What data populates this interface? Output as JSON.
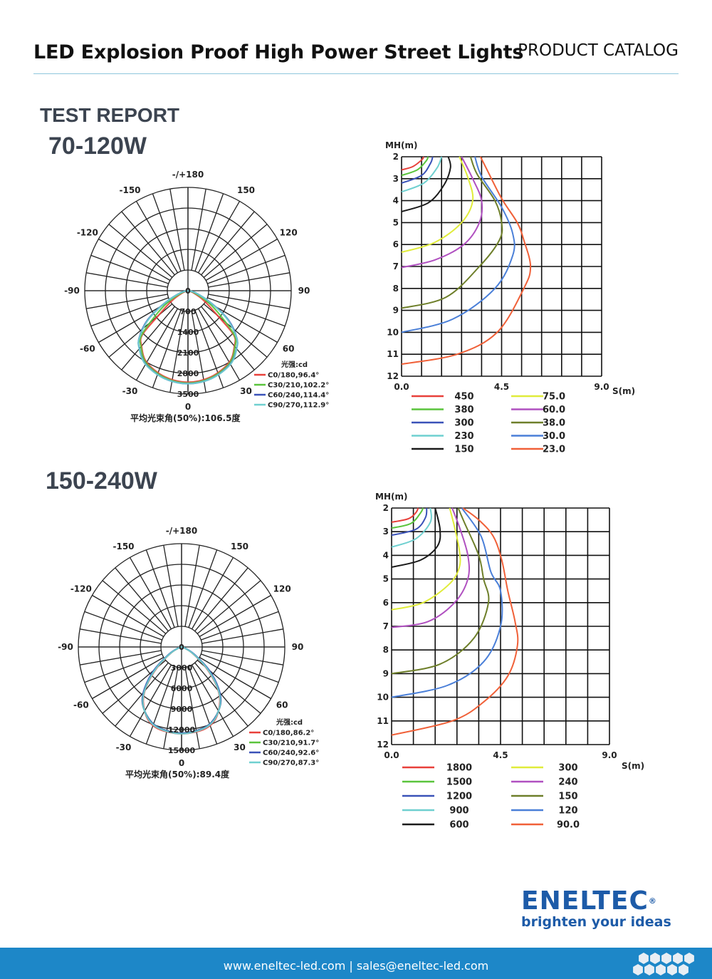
{
  "header": {
    "title": "LED Explosion Proof High Power Street Lights",
    "catalog": "PRODUCT CATALOG",
    "rule_color": "#8ec6dc"
  },
  "section": {
    "heading": "TEST REPORT"
  },
  "models": [
    "70-120W",
    "150-240W"
  ],
  "logo": {
    "name": "ENELTEC",
    "registered": "®",
    "tagline": "brighten your ideas",
    "color": "#1d5ba8"
  },
  "footer": {
    "contact": "www.eneltec-led.com | sales@eneltec-led.com",
    "color": "#1d87c8",
    "hexagon_icon": "hexagon-pattern"
  },
  "chart_data": [
    {
      "type": "polar",
      "model": "70-120W",
      "angle_labels": [
        "-/+180",
        "-150",
        "150",
        "-120",
        "120",
        "-90",
        "90",
        "-60",
        "60",
        "-30",
        "30",
        "0"
      ],
      "ring_labels": [
        "0",
        "700",
        "1400",
        "2100",
        "2800",
        "3500"
      ],
      "rmax": 3500,
      "unit_label": "光强:cd",
      "caption": "平均光束角(50%):106.5度",
      "series": [
        {
          "name": "C0/180,96.4°",
          "color": "#e8403a",
          "points": [
            [
              0,
              3100
            ],
            [
              15,
              3020
            ],
            [
              30,
              2800
            ],
            [
              40,
              2450
            ],
            [
              46,
              2150
            ],
            [
              50,
              1300
            ],
            [
              58,
              650
            ],
            [
              70,
              180
            ],
            [
              90,
              0
            ]
          ]
        },
        {
          "name": "C30/210,102.2°",
          "color": "#5ac43c",
          "points": [
            [
              0,
              3130
            ],
            [
              15,
              3050
            ],
            [
              30,
              2830
            ],
            [
              40,
              2480
            ],
            [
              46,
              2200
            ],
            [
              52,
              1450
            ],
            [
              60,
              800
            ],
            [
              72,
              220
            ],
            [
              90,
              0
            ]
          ]
        },
        {
          "name": "C60/240,114.4°",
          "color": "#3a52b8",
          "points": [
            [
              0,
              3150
            ],
            [
              15,
              3080
            ],
            [
              30,
              2870
            ],
            [
              40,
              2560
            ],
            [
              46,
              2300
            ],
            [
              54,
              1700
            ],
            [
              62,
              900
            ],
            [
              74,
              280
            ],
            [
              90,
              0
            ]
          ]
        },
        {
          "name": "C90/270,112.9°",
          "color": "#6fd0d0",
          "points": [
            [
              0,
              3150
            ],
            [
              15,
              3080
            ],
            [
              30,
              2880
            ],
            [
              40,
              2570
            ],
            [
              46,
              2290
            ],
            [
              54,
              1650
            ],
            [
              62,
              880
            ],
            [
              74,
              270
            ],
            [
              90,
              0
            ]
          ]
        }
      ]
    },
    {
      "type": "line",
      "model": "70-120W",
      "ylabel": "MH(m)",
      "xlabel": "S(m)",
      "xlim": [
        0,
        9
      ],
      "ylim": [
        2,
        12
      ],
      "y_inverted": true,
      "grid": true,
      "x_ticks": [
        "0.0",
        "4.5",
        "9.0"
      ],
      "y_ticks": [
        "2",
        "3",
        "4",
        "5",
        "6",
        "7",
        "8",
        "9",
        "10",
        "11",
        "12"
      ],
      "series": [
        {
          "name": "450",
          "color": "#e8403a",
          "points": [
            [
              0,
              2.6
            ],
            [
              0.5,
              2.45
            ],
            [
              0.9,
              2.15
            ],
            [
              1.0,
              2
            ]
          ]
        },
        {
          "name": "380",
          "color": "#5ac43c",
          "points": [
            [
              0,
              2.85
            ],
            [
              0.7,
              2.6
            ],
            [
              1.1,
              2.2
            ],
            [
              1.2,
              2
            ]
          ]
        },
        {
          "name": "300",
          "color": "#3a52b8",
          "points": [
            [
              0,
              3.2
            ],
            [
              0.9,
              2.85
            ],
            [
              1.3,
              2.3
            ],
            [
              1.4,
              2
            ]
          ]
        },
        {
          "name": "230",
          "color": "#6fd0d0",
          "points": [
            [
              0,
              3.6
            ],
            [
              1.0,
              3.2
            ],
            [
              1.6,
              2.5
            ],
            [
              1.8,
              2
            ]
          ]
        },
        {
          "name": "150",
          "color": "#1a1a1a",
          "points": [
            [
              0,
              4.5
            ],
            [
              1.2,
              4.1
            ],
            [
              1.9,
              3.3
            ],
            [
              2.2,
              2.5
            ],
            [
              2.1,
              2
            ]
          ]
        },
        {
          "name": "75.0",
          "color": "#e0ec3a",
          "points": [
            [
              0,
              6.35
            ],
            [
              1.5,
              5.9
            ],
            [
              2.7,
              5.0
            ],
            [
              3.2,
              4.0
            ],
            [
              3.0,
              3.0
            ],
            [
              2.6,
              2
            ]
          ]
        },
        {
          "name": "60.0",
          "color": "#b050c0",
          "points": [
            [
              0,
              7.05
            ],
            [
              1.5,
              6.7
            ],
            [
              2.8,
              6.0
            ],
            [
              3.5,
              5.0
            ],
            [
              3.6,
              4.0
            ],
            [
              3.2,
              3.0
            ],
            [
              2.7,
              2
            ]
          ]
        },
        {
          "name": "38.0",
          "color": "#6e7f2a",
          "points": [
            [
              0,
              8.9
            ],
            [
              2,
              8.4
            ],
            [
              3.5,
              7.0
            ],
            [
              4.4,
              5.8
            ],
            [
              4.5,
              5.0
            ],
            [
              4.2,
              4.0
            ],
            [
              3.4,
              2.8
            ],
            [
              3.1,
              2
            ]
          ]
        },
        {
          "name": "30.0",
          "color": "#4a7fd8",
          "points": [
            [
              0,
              10
            ],
            [
              2.3,
              9.4
            ],
            [
              4.2,
              8.0
            ],
            [
              5.0,
              6.5
            ],
            [
              5.0,
              5.5
            ],
            [
              4.5,
              4.3
            ],
            [
              3.6,
              2.9
            ],
            [
              3.3,
              2
            ]
          ]
        },
        {
          "name": "23.0",
          "color": "#f06038",
          "points": [
            [
              0,
              11.45
            ],
            [
              2.5,
              11
            ],
            [
              4.3,
              10
            ],
            [
              5.5,
              8.0
            ],
            [
              5.8,
              7.0
            ],
            [
              5.5,
              5.8
            ],
            [
              5.2,
              5
            ],
            [
              4.5,
              3.9
            ],
            [
              3.8,
              2.5
            ],
            [
              3.55,
              2
            ]
          ]
        }
      ]
    },
    {
      "type": "polar",
      "model": "150-240W",
      "angle_labels": [
        "-/+180",
        "-150",
        "150",
        "-120",
        "120",
        "-90",
        "90",
        "-60",
        "60",
        "-30",
        "30",
        "0"
      ],
      "ring_labels": [
        "0",
        "3000",
        "6000",
        "9000",
        "12000",
        "15000"
      ],
      "rmax": 15000,
      "unit_label": "光强:cd",
      "caption": "平均光束角(50%):89.4度",
      "series": [
        {
          "name": "C0/180,86.2°",
          "color": "#e8403a",
          "points": [
            [
              0,
              12600
            ],
            [
              15,
              12400
            ],
            [
              25,
              11600
            ],
            [
              35,
              9700
            ],
            [
              42,
              7600
            ],
            [
              50,
              4600
            ],
            [
              60,
              1800
            ],
            [
              75,
              300
            ],
            [
              90,
              0
            ]
          ]
        },
        {
          "name": "C30/210,91.7°",
          "color": "#5ac43c",
          "points": [
            [
              0,
              12500
            ],
            [
              15,
              12200
            ],
            [
              25,
              11400
            ],
            [
              35,
              9900
            ],
            [
              42,
              7900
            ],
            [
              50,
              5000
            ],
            [
              60,
              2000
            ],
            [
              75,
              350
            ],
            [
              90,
              0
            ]
          ]
        },
        {
          "name": "C60/240,92.6°",
          "color": "#3a52b8",
          "points": [
            [
              0,
              12500
            ],
            [
              15,
              12200
            ],
            [
              25,
              11400
            ],
            [
              35,
              9900
            ],
            [
              42,
              8000
            ],
            [
              50,
              5200
            ],
            [
              60,
              2100
            ],
            [
              75,
              380
            ],
            [
              90,
              0
            ]
          ]
        },
        {
          "name": "C90/270,87.3°",
          "color": "#6fd0d0",
          "points": [
            [
              0,
              12600
            ],
            [
              15,
              12300
            ],
            [
              25,
              11500
            ],
            [
              35,
              9800
            ],
            [
              42,
              7700
            ],
            [
              50,
              4800
            ],
            [
              60,
              1900
            ],
            [
              75,
              320
            ],
            [
              90,
              0
            ]
          ]
        }
      ]
    },
    {
      "type": "line",
      "model": "150-240W",
      "ylabel": "MH(m)",
      "xlabel": "S(m)",
      "xlim": [
        0,
        9
      ],
      "ylim": [
        2,
        12
      ],
      "y_inverted": true,
      "grid": true,
      "x_ticks": [
        "0.0",
        "4.5",
        "9.0"
      ],
      "y_ticks": [
        "2",
        "3",
        "4",
        "5",
        "6",
        "7",
        "8",
        "9",
        "10",
        "11",
        "12"
      ],
      "series": [
        {
          "name": "1800",
          "color": "#e8403a",
          "points": [
            [
              0,
              2.6
            ],
            [
              0.7,
              2.45
            ],
            [
              1.0,
              2.2
            ],
            [
              1.1,
              2
            ]
          ]
        },
        {
          "name": "1500",
          "color": "#5ac43c",
          "points": [
            [
              0,
              2.85
            ],
            [
              0.8,
              2.65
            ],
            [
              1.2,
              2.2
            ],
            [
              1.3,
              2
            ]
          ]
        },
        {
          "name": "1200",
          "color": "#3a52b8",
          "points": [
            [
              0,
              3.15
            ],
            [
              1.0,
              2.9
            ],
            [
              1.4,
              2.4
            ],
            [
              1.45,
              2
            ]
          ]
        },
        {
          "name": "900",
          "color": "#6fd0d0",
          "points": [
            [
              0,
              3.65
            ],
            [
              1.0,
              3.3
            ],
            [
              1.6,
              2.6
            ],
            [
              1.6,
              2
            ]
          ]
        },
        {
          "name": "600",
          "color": "#1a1a1a",
          "points": [
            [
              0,
              4.5
            ],
            [
              1.2,
              4.2
            ],
            [
              1.9,
              3.6
            ],
            [
              2.0,
              2.9
            ],
            [
              1.8,
              2
            ]
          ]
        },
        {
          "name": "300",
          "color": "#e0ec3a",
          "points": [
            [
              0,
              6.3
            ],
            [
              1.3,
              6.0
            ],
            [
              2.4,
              5.2
            ],
            [
              2.8,
              4.5
            ],
            [
              2.8,
              3.8
            ],
            [
              2.6,
              2.8
            ],
            [
              2.4,
              2
            ]
          ]
        },
        {
          "name": "240",
          "color": "#b050c0",
          "points": [
            [
              0,
              7.05
            ],
            [
              1.5,
              6.8
            ],
            [
              2.6,
              6.0
            ],
            [
              3.15,
              5.0
            ],
            [
              3.15,
              4.0
            ],
            [
              2.8,
              2.8
            ],
            [
              2.5,
              2
            ]
          ]
        },
        {
          "name": "150",
          "color": "#6e7f2a",
          "points": [
            [
              0,
              9
            ],
            [
              2,
              8.6
            ],
            [
              3.4,
              7.5
            ],
            [
              4.0,
              6.0
            ],
            [
              3.8,
              5.0
            ],
            [
              3.6,
              4.0
            ],
            [
              3.0,
              2.6
            ],
            [
              2.75,
              2
            ]
          ]
        },
        {
          "name": "120",
          "color": "#4a7fd8",
          "points": [
            [
              0,
              10
            ],
            [
              2.3,
              9.5
            ],
            [
              3.8,
              8.5
            ],
            [
              4.5,
              7.0
            ],
            [
              4.5,
              5.5
            ],
            [
              4.1,
              4.7
            ],
            [
              3.7,
              3.2
            ],
            [
              2.9,
              2
            ]
          ]
        },
        {
          "name": "90.0",
          "color": "#f06038",
          "points": [
            [
              0,
              11.6
            ],
            [
              2.5,
              11
            ],
            [
              3.8,
              10.2
            ],
            [
              4.8,
              9.1
            ],
            [
              5.2,
              7.8
            ],
            [
              5.1,
              6.8
            ],
            [
              4.8,
              5.5
            ],
            [
              4.55,
              4.2
            ],
            [
              4.2,
              3.2
            ],
            [
              3.6,
              2.5
            ],
            [
              2.95,
              2
            ]
          ]
        }
      ]
    }
  ]
}
